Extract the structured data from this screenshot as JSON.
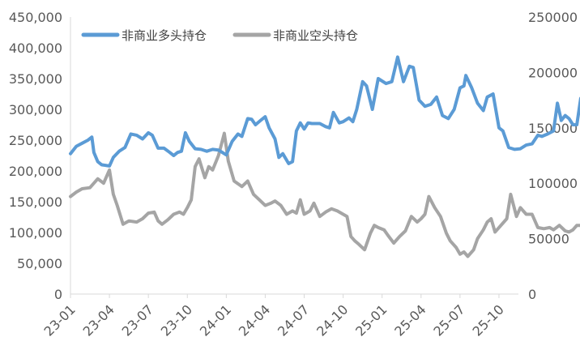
{
  "chart_data": {
    "type": "line",
    "y_left": {
      "min": 0,
      "max": 450000,
      "step": 50000,
      "tick_labels": [
        "0",
        "50,000",
        "100,000",
        "150,000",
        "200,000",
        "250,000",
        "300,000",
        "350,000",
        "400,000",
        "450,000"
      ]
    },
    "y_right": {
      "min": 0,
      "max": 250000,
      "step": 50000,
      "tick_labels": [
        "0",
        "50000",
        "100000",
        "150000",
        "200000",
        "250000"
      ]
    },
    "x_tick_labels": [
      "23-01",
      "23-04",
      "23-07",
      "23-10",
      "24-01",
      "24-04",
      "24-07",
      "24-10",
      "25-01",
      "25-04",
      "25-07",
      "25-10"
    ],
    "legend_position": "top-left",
    "grid": false,
    "series": [
      {
        "name": "非商业多头持仓",
        "axis": "left",
        "color": "#5B9BD5",
        "points": [
          [
            0.0,
            228000
          ],
          [
            0.15,
            240000
          ],
          [
            0.3,
            245000
          ],
          [
            0.45,
            250000
          ],
          [
            0.55,
            255000
          ],
          [
            0.6,
            230000
          ],
          [
            0.7,
            215000
          ],
          [
            0.8,
            210000
          ],
          [
            1.0,
            208000
          ],
          [
            1.1,
            222000
          ],
          [
            1.25,
            232000
          ],
          [
            1.4,
            238000
          ],
          [
            1.55,
            260000
          ],
          [
            1.7,
            258000
          ],
          [
            1.85,
            252000
          ],
          [
            2.0,
            262000
          ],
          [
            2.1,
            258000
          ],
          [
            2.25,
            237000
          ],
          [
            2.4,
            237000
          ],
          [
            2.55,
            230000
          ],
          [
            2.65,
            225000
          ],
          [
            2.75,
            230000
          ],
          [
            2.85,
            232000
          ],
          [
            2.95,
            262000
          ],
          [
            3.05,
            248000
          ],
          [
            3.2,
            236000
          ],
          [
            3.35,
            235000
          ],
          [
            3.5,
            232000
          ],
          [
            3.65,
            235000
          ],
          [
            3.8,
            234000
          ],
          [
            4.0,
            226000
          ],
          [
            4.15,
            248000
          ],
          [
            4.3,
            260000
          ],
          [
            4.4,
            256000
          ],
          [
            4.55,
            285000
          ],
          [
            4.65,
            284000
          ],
          [
            4.75,
            275000
          ],
          [
            4.9,
            283000
          ],
          [
            5.0,
            288000
          ],
          [
            5.1,
            270000
          ],
          [
            5.25,
            252000
          ],
          [
            5.35,
            222000
          ],
          [
            5.45,
            228000
          ],
          [
            5.6,
            212000
          ],
          [
            5.7,
            215000
          ],
          [
            5.8,
            265000
          ],
          [
            5.9,
            278000
          ],
          [
            6.0,
            268000
          ],
          [
            6.1,
            278000
          ],
          [
            6.2,
            277000
          ],
          [
            6.4,
            277000
          ],
          [
            6.55,
            272000
          ],
          [
            6.65,
            270000
          ],
          [
            6.75,
            295000
          ],
          [
            6.9,
            278000
          ],
          [
            7.0,
            280000
          ],
          [
            7.15,
            286000
          ],
          [
            7.25,
            280000
          ],
          [
            7.35,
            300000
          ],
          [
            7.5,
            345000
          ],
          [
            7.6,
            338000
          ],
          [
            7.75,
            300000
          ],
          [
            7.9,
            350000
          ],
          [
            8.1,
            342000
          ],
          [
            8.25,
            345000
          ],
          [
            8.4,
            385000
          ],
          [
            8.55,
            345000
          ],
          [
            8.7,
            370000
          ],
          [
            8.8,
            368000
          ],
          [
            8.95,
            315000
          ],
          [
            9.1,
            305000
          ],
          [
            9.25,
            308000
          ],
          [
            9.4,
            320000
          ],
          [
            9.55,
            290000
          ],
          [
            9.7,
            285000
          ],
          [
            9.85,
            300000
          ],
          [
            10.0,
            335000
          ],
          [
            10.1,
            338000
          ],
          [
            10.15,
            355000
          ],
          [
            10.3,
            335000
          ],
          [
            10.45,
            310000
          ],
          [
            10.6,
            298000
          ],
          [
            10.7,
            320000
          ],
          [
            10.85,
            325000
          ],
          [
            11.0,
            270000
          ],
          [
            11.1,
            265000
          ],
          [
            11.25,
            238000
          ],
          [
            11.4,
            235000
          ],
          [
            11.55,
            236000
          ],
          [
            11.7,
            242000
          ],
          [
            11.85,
            244000
          ],
          [
            12.0,
            258000
          ],
          [
            12.1,
            256000
          ],
          [
            12.25,
            260000
          ],
          [
            12.4,
            265000
          ],
          [
            12.5,
            310000
          ],
          [
            12.6,
            282000
          ],
          [
            12.7,
            290000
          ],
          [
            12.8,
            285000
          ],
          [
            12.9,
            275000
          ],
          [
            13.0,
            275000
          ],
          [
            13.1,
            318000
          ],
          [
            13.2,
            325000
          ],
          [
            13.35,
            328000
          ],
          [
            13.45,
            333000
          ]
        ]
      },
      {
        "name": "非商业空头持仓",
        "axis": "right",
        "color": "#A5A5A5",
        "points": [
          [
            0.0,
            88000
          ],
          [
            0.15,
            92000
          ],
          [
            0.3,
            95000
          ],
          [
            0.5,
            96000
          ],
          [
            0.7,
            104000
          ],
          [
            0.85,
            100000
          ],
          [
            1.0,
            112000
          ],
          [
            1.1,
            90000
          ],
          [
            1.2,
            80000
          ],
          [
            1.35,
            63000
          ],
          [
            1.5,
            66000
          ],
          [
            1.7,
            65000
          ],
          [
            1.85,
            68000
          ],
          [
            2.0,
            73000
          ],
          [
            2.15,
            74000
          ],
          [
            2.25,
            66000
          ],
          [
            2.35,
            63000
          ],
          [
            2.5,
            67000
          ],
          [
            2.65,
            72000
          ],
          [
            2.8,
            74000
          ],
          [
            2.9,
            72000
          ],
          [
            3.0,
            78000
          ],
          [
            3.1,
            85000
          ],
          [
            3.2,
            115000
          ],
          [
            3.3,
            122000
          ],
          [
            3.45,
            105000
          ],
          [
            3.55,
            115000
          ],
          [
            3.65,
            112000
          ],
          [
            3.8,
            125000
          ],
          [
            3.95,
            145000
          ],
          [
            4.05,
            120000
          ],
          [
            4.2,
            102000
          ],
          [
            4.4,
            97000
          ],
          [
            4.55,
            102000
          ],
          [
            4.7,
            90000
          ],
          [
            4.85,
            85000
          ],
          [
            5.0,
            80000
          ],
          [
            5.15,
            82000
          ],
          [
            5.25,
            84000
          ],
          [
            5.4,
            80000
          ],
          [
            5.55,
            72000
          ],
          [
            5.7,
            75000
          ],
          [
            5.8,
            73000
          ],
          [
            5.9,
            85000
          ],
          [
            6.0,
            72000
          ],
          [
            6.15,
            75000
          ],
          [
            6.25,
            82000
          ],
          [
            6.4,
            70000
          ],
          [
            6.55,
            74000
          ],
          [
            6.7,
            77000
          ],
          [
            6.85,
            75000
          ],
          [
            7.0,
            72000
          ],
          [
            7.1,
            70000
          ],
          [
            7.2,
            52000
          ],
          [
            7.3,
            48000
          ],
          [
            7.4,
            45000
          ],
          [
            7.55,
            40000
          ],
          [
            7.7,
            55000
          ],
          [
            7.8,
            62000
          ],
          [
            7.9,
            60000
          ],
          [
            8.05,
            58000
          ],
          [
            8.15,
            53000
          ],
          [
            8.3,
            46000
          ],
          [
            8.45,
            52000
          ],
          [
            8.6,
            57000
          ],
          [
            8.75,
            70000
          ],
          [
            8.9,
            65000
          ],
          [
            9.0,
            68000
          ],
          [
            9.1,
            72000
          ],
          [
            9.2,
            88000
          ],
          [
            9.35,
            78000
          ],
          [
            9.5,
            70000
          ],
          [
            9.65,
            55000
          ],
          [
            9.75,
            48000
          ],
          [
            9.9,
            42000
          ],
          [
            10.0,
            36000
          ],
          [
            10.1,
            38000
          ],
          [
            10.2,
            34000
          ],
          [
            10.35,
            40000
          ],
          [
            10.45,
            50000
          ],
          [
            10.6,
            58000
          ],
          [
            10.7,
            65000
          ],
          [
            10.8,
            68000
          ],
          [
            10.9,
            56000
          ],
          [
            11.0,
            60000
          ],
          [
            11.2,
            68000
          ],
          [
            11.3,
            90000
          ],
          [
            11.45,
            70000
          ],
          [
            11.55,
            78000
          ],
          [
            11.7,
            72000
          ],
          [
            11.85,
            72000
          ],
          [
            12.0,
            60000
          ],
          [
            12.15,
            59000
          ],
          [
            12.3,
            60000
          ],
          [
            12.4,
            58000
          ],
          [
            12.55,
            62000
          ],
          [
            12.7,
            57000
          ],
          [
            12.8,
            56000
          ],
          [
            12.9,
            58000
          ],
          [
            13.0,
            62000
          ],
          [
            13.1,
            62000
          ],
          [
            13.2,
            65000
          ],
          [
            13.3,
            60000
          ],
          [
            13.45,
            66000
          ]
        ]
      }
    ]
  }
}
